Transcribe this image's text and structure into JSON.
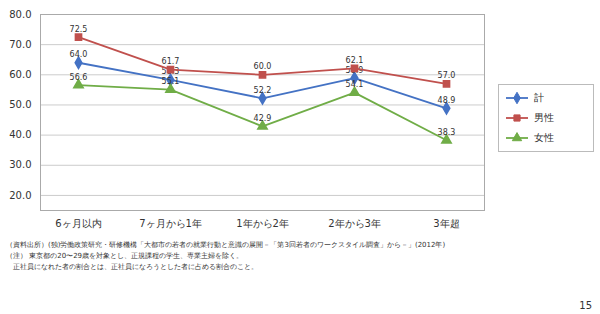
{
  "chart_data": {
    "type": "line",
    "categories": [
      "6ヶ月以内",
      "7ヶ月から1年",
      "1年から2年",
      "2年から3年",
      "3年超"
    ],
    "series": [
      {
        "name": "計",
        "color": "#4472C4",
        "marker": "diamond",
        "values": [
          64.0,
          58.3,
          52.2,
          58.9,
          48.9
        ],
        "value_labels": [
          "64.0",
          "58.3",
          "52.2",
          "58.9",
          "48.9"
        ]
      },
      {
        "name": "男性",
        "color": "#C0504D",
        "marker": "square",
        "values": [
          72.5,
          61.7,
          60.0,
          62.1,
          57.0
        ],
        "value_labels": [
          "72.5",
          "61.7",
          "60.0",
          "62.1",
          "57.0"
        ]
      },
      {
        "name": "女性",
        "color": "#70AD47",
        "marker": "triangle",
        "values": [
          56.6,
          55.1,
          42.9,
          54.1,
          38.3
        ],
        "value_labels": [
          "56.6",
          "55.1",
          "42.9",
          "54.1",
          "38.3"
        ]
      }
    ],
    "ylim": [
      15.0,
      80.0
    ],
    "yticks": [
      {
        "value": 20.0,
        "label": "20.0"
      },
      {
        "value": 30.0,
        "label": "30.0"
      },
      {
        "value": 40.0,
        "label": "40.0"
      },
      {
        "value": 50.0,
        "label": "50.0"
      },
      {
        "value": 60.0,
        "label": "60.0"
      },
      {
        "value": 70.0,
        "label": "70.0"
      },
      {
        "value": 80.0,
        "label": "80.0"
      }
    ],
    "grid": true,
    "legend": "right",
    "data_labels": true,
    "footnotes": [
      "（資料出所）(独)労働政策研究・研修機構「大都市の若者の就業行動と意識の展開－「第3回若者のワークスタイル調査」から－」(2012年)",
      "（注） 東京都の20〜29歳を対象とし、正規課程の学生、専業主婦を除く。",
      "　正社員になれた者の割合とは、正社員になろうとした者に占める割合のこと。"
    ],
    "page_number": "15"
  }
}
